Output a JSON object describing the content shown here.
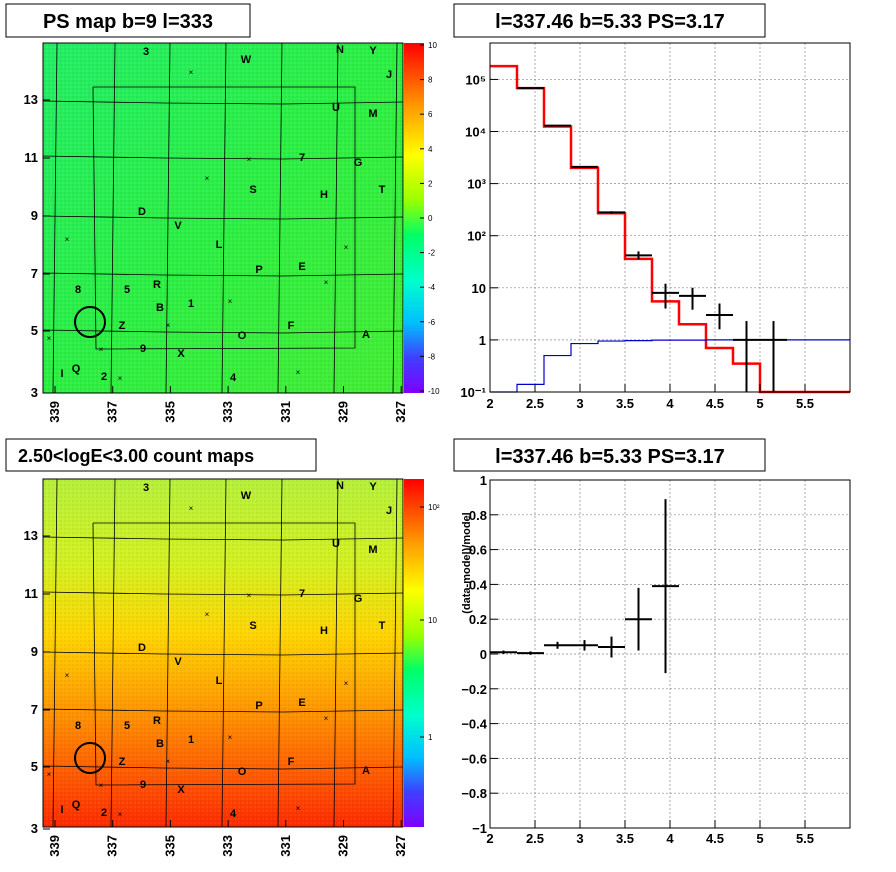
{
  "panels": {
    "tl_title": "PS map b=9 l=333",
    "tr_title": "l=337.46 b=5.33 PS=3.17",
    "bl_title": "2.50<logE<3.00 count maps",
    "br_title": "l=337.46 b=5.33 PS=3.17"
  },
  "map": {
    "x_ticks": [
      "339",
      "337",
      "335",
      "333",
      "331",
      "329",
      "327"
    ],
    "y_ticks": [
      "13",
      "11",
      "9",
      "7",
      "5",
      "3"
    ],
    "source_labels": [
      "3",
      "W",
      "N",
      "Y",
      "J",
      "M",
      "U",
      "7",
      "G",
      "S",
      "H",
      "T",
      "D",
      "V",
      "L",
      "P",
      "E",
      "8",
      "5",
      "R",
      "B",
      "1",
      "Z",
      "O",
      "F",
      "A",
      "9",
      "X",
      "I",
      "Q",
      "2",
      "4"
    ],
    "ps_colorbar_ticks": [
      "10",
      "8",
      "6",
      "4",
      "2",
      "0",
      "-2",
      "-4",
      "-6",
      "-8",
      "-10"
    ],
    "count_colorbar_ticks": [
      "10²",
      "10",
      "1"
    ],
    "ps_colors": [
      "#7f00ff",
      "#3f3fff",
      "#00bfff",
      "#00ffbf",
      "#00ff5f",
      "#3fff00",
      "#9fff00",
      "#ffff00",
      "#ffbf00",
      "#ff7f00",
      "#ff0000"
    ]
  },
  "chart_data": [
    {
      "type": "histogram",
      "title": "l=337.46 b=5.33 PS=3.17",
      "xlabel": "",
      "ylabel": "",
      "xlim": [
        2,
        6
      ],
      "ylim": [
        0.1,
        500000
      ],
      "yscale": "log",
      "grid": true,
      "x_ticks": [
        "2",
        "2.5",
        "3",
        "3.5",
        "4",
        "4.5",
        "5",
        "5.5"
      ],
      "y_ticks": [
        "10⁵",
        "10⁴",
        "10³",
        "10²",
        "10",
        "1",
        "10⁻¹"
      ],
      "bin_edges": [
        2.0,
        2.3,
        2.6,
        2.9,
        3.2,
        3.5,
        3.8,
        4.1,
        4.4,
        4.7,
        5.0,
        5.3,
        6.0
      ],
      "series": [
        {
          "kind": "model_total",
          "color": "#ff0000",
          "values": [
            180000,
            68000,
            12500,
            2000,
            270,
            36,
            5.5,
            2.0,
            0.7,
            0.35,
            0.1,
            0.1
          ]
        },
        {
          "kind": "model_background",
          "color": "#0000cc",
          "values": [
            0.05,
            0.14,
            0.5,
            0.85,
            0.95,
            0.97,
            0.99,
            0.99,
            1.0,
            1.0,
            1.0,
            1.0
          ]
        },
        {
          "kind": "data",
          "color": "#000000",
          "x": [
            2.45,
            2.75,
            3.05,
            3.35,
            3.65,
            3.95,
            4.25,
            4.55,
            4.85,
            5.15
          ],
          "y": [
            68000,
            13000,
            2100,
            280,
            42,
            8.0,
            7.0,
            3.0,
            1.0,
            1.0
          ],
          "yerr_low": [
            67700,
            12880,
            2050,
            265,
            35,
            4.0,
            3.8,
            1.6,
            0.01,
            0.01
          ],
          "yerr_high": [
            68300,
            13120,
            2150,
            295,
            50,
            12,
            10,
            5.0,
            2.3,
            2.3
          ]
        }
      ]
    },
    {
      "type": "scatter",
      "title": "l=337.46 b=5.33 PS=3.17",
      "xlabel": "",
      "ylabel": "(data-model)/model",
      "xlim": [
        2,
        6
      ],
      "ylim": [
        -1,
        1
      ],
      "grid": true,
      "x_ticks": [
        "2",
        "2.5",
        "3",
        "3.5",
        "4",
        "4.5",
        "5",
        "5.5"
      ],
      "y_ticks": [
        "1",
        "0.8",
        "0.6",
        "0.4",
        "0.2",
        "0",
        "−0.2",
        "−0.4",
        "−0.6",
        "−0.8",
        "−1"
      ],
      "points": [
        {
          "x": 2.15,
          "y": 0.01,
          "xerr": 0.15,
          "yerr": 0.01
        },
        {
          "x": 2.45,
          "y": 0.005,
          "xerr": 0.15,
          "yerr": 0.01
        },
        {
          "x": 2.75,
          "y": 0.05,
          "xerr": 0.15,
          "yerr": 0.02
        },
        {
          "x": 3.05,
          "y": 0.05,
          "xerr": 0.15,
          "yerr": 0.03
        },
        {
          "x": 3.35,
          "y": 0.04,
          "xerr": 0.15,
          "yerr": 0.06
        },
        {
          "x": 3.65,
          "y": 0.2,
          "xerr": 0.15,
          "yerr": 0.18
        },
        {
          "x": 3.95,
          "y": 0.39,
          "xerr": 0.15,
          "yerr": 0.5
        }
      ]
    }
  ]
}
